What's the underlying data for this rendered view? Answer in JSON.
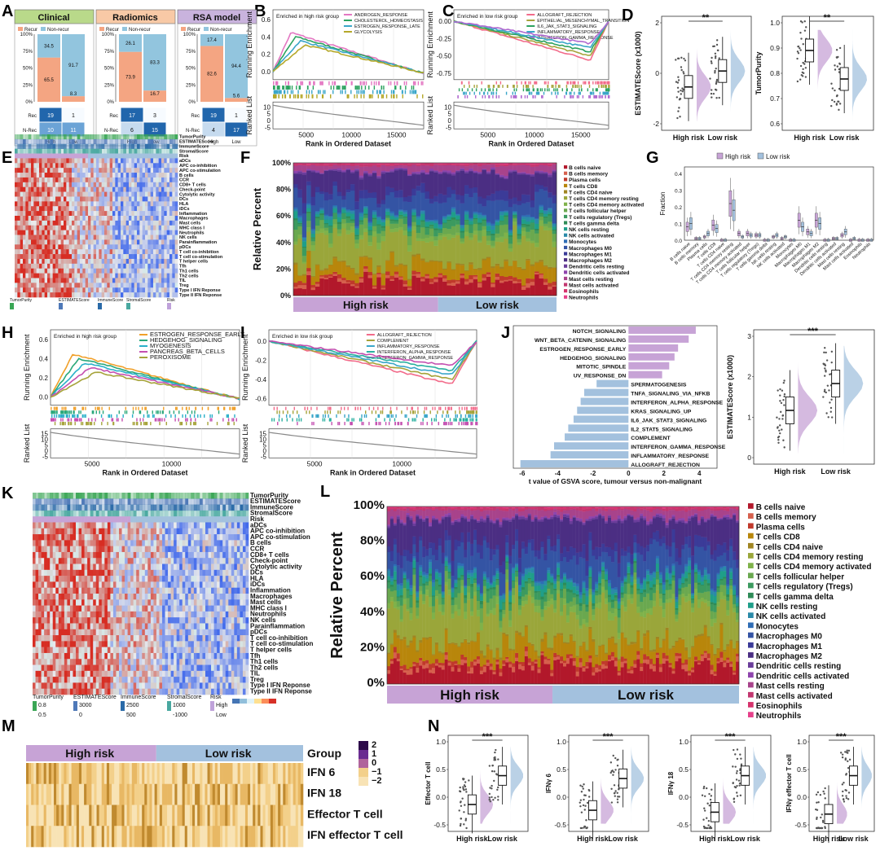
{
  "panel_labels": [
    "A",
    "B",
    "C",
    "D",
    "E",
    "F",
    "G",
    "H",
    "I",
    "J",
    "K",
    "L",
    "M",
    "N"
  ],
  "colors": {
    "recur": "#f4a582",
    "nonrecur": "#92c5de",
    "clinical_head": "#b9d98a",
    "radiomics_head": "#f8c9a6",
    "rsa_head": "#c9b3dd",
    "high": "#c7a3d6",
    "low": "#a3c1de",
    "heat_red": "#d73027",
    "heat_blue": "#4575b4"
  },
  "chart_data": [
    {
      "id": "A",
      "type": "bar",
      "groups": [
        "Clinical",
        "Radiomics",
        "RSA model"
      ],
      "legend": [
        "Recur",
        "Non-recur"
      ],
      "yticks": [
        "0%",
        "25%",
        "50%",
        "75%",
        "100%"
      ],
      "series": [
        {
          "name": "Recur",
          "values": [
            65.5,
            73.9,
            82.6
          ]
        },
        {
          "name": "Non-recur",
          "values": [
            91.7,
            83.3,
            94.4
          ]
        }
      ],
      "bar_labels": [
        {
          "high_recur": "65.5",
          "high_non": "34.5",
          "low_recur": "8.3",
          "low_non": "91.7"
        },
        {
          "high_recur": "73.9",
          "high_non": "26.1",
          "low_recur": "16.7",
          "low_non": "83.3"
        },
        {
          "high_recur": "82.6",
          "high_non": "17.4",
          "low_recur": "5.6",
          "low_non": "94.4"
        }
      ],
      "matrix_rows": [
        "Rec",
        "N-Rec"
      ],
      "matrix_cols": [
        "High",
        "Low"
      ],
      "matrices": [
        [
          [
            "19",
            "1"
          ],
          [
            "10",
            "11"
          ]
        ],
        [
          [
            "17",
            "3"
          ],
          [
            "6",
            "15"
          ]
        ],
        [
          [
            "19",
            "1"
          ],
          [
            "4",
            "17"
          ]
        ]
      ]
    },
    {
      "id": "B",
      "type": "line",
      "title": "Enriched in high risk group",
      "series": [
        {
          "name": "ANDROGEN_RESPONSE"
        },
        {
          "name": "CHOLESTEROL_HOMEOSTASIS"
        },
        {
          "name": "ESTROGEN_RESPONSE_LATE"
        },
        {
          "name": "GLYCOLYSIS"
        }
      ],
      "ylabel": "Running Enrichment",
      "yticks": [
        "0.0",
        "0.2",
        "0.4",
        "0.6"
      ],
      "ylabel2": "Ranked List",
      "yticks2": [
        "10",
        "5",
        "0",
        "-5"
      ],
      "xlabel": "Rank in Ordered Dataset",
      "xticks": [
        "5000",
        "10000",
        "15000"
      ]
    },
    {
      "id": "C",
      "type": "line",
      "title": "Enriched in low risk group",
      "series": [
        {
          "name": "ALLOGRAFT_REJECTION"
        },
        {
          "name": "EPITHELIAL_MESENCHYMAL_TRANSITION"
        },
        {
          "name": "IL6_JAK_STAT3_SIGNALING"
        },
        {
          "name": "INFLAMMATORY_RESPONSE"
        },
        {
          "name": "INTERFERON_GAMMA_RESPONSE"
        }
      ],
      "ylabel": "Running Enrichment",
      "yticks": [
        "0.00",
        "-0.25",
        "-0.50",
        "-0.75"
      ],
      "ylabel2": "Ranked List",
      "yticks2": [
        "10",
        "5",
        "0",
        "-5"
      ],
      "xlabel": "Rank in Ordered Dataset",
      "xticks": [
        "5000",
        "10000",
        "15000"
      ]
    },
    {
      "id": "D",
      "type": "scatter",
      "plots": [
        {
          "ylabel": "ESTIMATEScore (x1000)",
          "yticks": [
            "2",
            "0",
            "-2"
          ],
          "sig": "**",
          "categories": [
            "High risk",
            "Low risk"
          ]
        },
        {
          "ylabel": "TumorPurity",
          "yticks": [
            "1.0",
            "0.9",
            "0.8",
            "0.7",
            "0.6"
          ],
          "sig": "**",
          "categories": [
            "High risk",
            "Low risk"
          ]
        }
      ]
    },
    {
      "id": "E",
      "type": "heatmap",
      "rows": [
        "TumorPurity",
        "ESTIMATEScore",
        "ImmuneScore",
        "StromalScore",
        "Risk",
        "aDCs",
        "APC co-inhibition",
        "APC co-stimulation",
        "B cells",
        "CCR",
        "CD8+ T cells",
        "Check-point",
        "Cytolytic activity",
        "DCs",
        "HLA",
        "iDCs",
        "Inflammation",
        "Macrophages",
        "Mast cells",
        "MHC class I",
        "Neutrophils",
        "NK cells",
        "Parainflammation",
        "pDCs",
        "T cell co-inhibition",
        "T cell co-stimulation",
        "T helper cells",
        "Tfh",
        "Th1 cells",
        "Th2 cells",
        "TIL",
        "Treg",
        "Type I IFN Reponse",
        "Type II IFN Reponse"
      ]
    },
    {
      "id": "F",
      "type": "bar",
      "ylabel": "Relative Percent",
      "yticks": [
        "0%",
        "20%",
        "40%",
        "60%",
        "80%",
        "100%"
      ],
      "groups": [
        "High risk",
        "Low risk"
      ],
      "legend": [
        "B cells naive",
        "B cells memory",
        "Plasma cells",
        "T cells CD8",
        "T cells CD4 naive",
        "T cells CD4 memory resting",
        "T cells CD4 memory activated",
        "T cells follicular helper",
        "T cells regulatory (Tregs)",
        "T cells gamma delta",
        "NK cells resting",
        "NK cells activated",
        "Monocytes",
        "Macrophages M0",
        "Macrophages M1",
        "Macrophages M2",
        "Dendritic cells resting",
        "Dendritic cells activated",
        "Mast cells resting",
        "Mast cells activated",
        "Eosinophils",
        "Neutrophils"
      ]
    },
    {
      "id": "G",
      "type": "scatter",
      "legend": [
        "High risk",
        "Low risk"
      ],
      "ylabel": "Fraction",
      "yticks": [
        "0.0",
        "0.1",
        "0.2",
        "0.3",
        "0.4"
      ],
      "categories": [
        "B cells naive",
        "B cells memory",
        "Plasma cells",
        "T cells CD8",
        "T cells CD4 naive",
        "T cells CD4 memory resting",
        "T cells CD4 memory activated",
        "T cells follicular helper",
        "T cells regulatory (Tregs)",
        "T cells gamma delta",
        "NK cells resting",
        "NK cells activated",
        "Monocytes",
        "Macrophages M0",
        "Macrophages M1",
        "Macrophages M2",
        "Dendritic cells resting",
        "Dendritic cells activated",
        "Mast cells resting",
        "Mast cells activated",
        "Eosinophils",
        "Neutrophils"
      ],
      "high_medians": [
        0.08,
        0.01,
        0.02,
        0.09,
        0.0,
        0.22,
        0.04,
        0.04,
        0.03,
        0.0,
        0.02,
        0.01,
        0.0,
        0.12,
        0.05,
        0.12,
        0.0,
        0.01,
        0.03,
        0.0,
        0.0,
        0.0
      ],
      "low_medians": [
        0.1,
        0.01,
        0.04,
        0.07,
        0.0,
        0.18,
        0.02,
        0.03,
        0.03,
        0.0,
        0.03,
        0.02,
        0.0,
        0.08,
        0.04,
        0.1,
        0.0,
        0.01,
        0.05,
        0.01,
        0.0,
        0.0
      ]
    },
    {
      "id": "H",
      "type": "line",
      "title": "Enriched in high risk group",
      "series": [
        {
          "name": "ESTROGEN_RESPONSE_EARLY"
        },
        {
          "name": "HEDGEHOG_SIGNALING"
        },
        {
          "name": "MYOGENESIS"
        },
        {
          "name": "PANCREAS_BETA_CELLS"
        },
        {
          "name": "PEROXISOME"
        }
      ],
      "ylabel": "Running Enrichment",
      "yticks": [
        "0.0",
        "0.2",
        "0.4",
        "0.6"
      ],
      "ylabel2": "Ranked List",
      "yticks2": [
        "15",
        "10",
        "5",
        "0",
        "-5"
      ],
      "xlabel": "Rank in Ordered Dataset",
      "xticks": [
        "5000",
        "10000"
      ]
    },
    {
      "id": "I",
      "type": "line",
      "title": "Enriched in low risk group",
      "series": [
        {
          "name": "ALLOGRAFT_REJECTION"
        },
        {
          "name": "COMPLEMENT"
        },
        {
          "name": "INFLAMMATORY_RESPONSE"
        },
        {
          "name": "INTERFERON_ALPHA_RESPONSE"
        },
        {
          "name": "INTERFERON_GAMMA_RESPONSE"
        }
      ],
      "ylabel": "Running Enrichment",
      "yticks": [
        "0.0",
        "-0.2",
        "-0.4",
        "-0.6"
      ],
      "ylabel2": "Ranked List",
      "yticks2": [
        "15",
        "10",
        "5",
        "0",
        "-5"
      ],
      "xlabel": "Rank in Ordered Dataset",
      "xticks": [
        "5000",
        "10000"
      ]
    },
    {
      "id": "J",
      "type": "bar",
      "xlabel": "t value of GSVA score, tumour versus non-malignant",
      "xticks": [
        "-6",
        "-4",
        "-2",
        "0",
        "2",
        "4"
      ],
      "categories": [
        "NOTCH_SIGNALING",
        "WNT_BETA_CATENIN_SIGNALING",
        "ESTROGEN_RESPONSE_EARLY",
        "HEDGEHOG_SIGNALING",
        "MITOTIC_SPINDLE",
        "UV_RESPONSE_DN",
        "SPERMATOGENESIS",
        "TNFA_SIGNALING_VIA_NFKB",
        "INTERFERON_ALPHA_RESPONSE",
        "KRAS_SIGNALING_UP",
        "IL6_JAK_STAT3_SIGNALING",
        "IL2_STAT5_SIGNALING",
        "COMPLEMENT",
        "INTERFERON_GAMMA_RESPONSE",
        "INFLAMMATORY_RESPONSE",
        "ALLOGRAFT_REJECTION"
      ],
      "values": [
        3.8,
        3.4,
        2.8,
        2.6,
        2.3,
        1.9,
        -1.8,
        -2.5,
        -2.7,
        -2.9,
        -3.1,
        -3.4,
        -3.6,
        -4.2,
        -4.4,
        -6.1
      ]
    },
    {
      "id": "J2",
      "type": "scatter",
      "ylabel": "ESTIMATEScore (x1000)",
      "yticks": [
        "3",
        "2",
        "1",
        "0"
      ],
      "categories": [
        "High risk",
        "Low risk"
      ],
      "sig": "***"
    },
    {
      "id": "K",
      "type": "heatmap",
      "rows": [
        "TumorPurity",
        "ESTIMATEScore",
        "ImmuneScore",
        "StromalScore",
        "Risk",
        "aDCs",
        "APC co-inhibition",
        "APC co-stimulation",
        "B cells",
        "CCR",
        "CD8+ T cells",
        "Check-point",
        "Cytolytic activity",
        "DCs",
        "HLA",
        "iDCs",
        "Inflammation",
        "Macrophages",
        "Mast cells",
        "MHC class I",
        "Neutrophils",
        "NK cells",
        "Parainflammation",
        "pDCs",
        "T cell co-inhibition",
        "T cell co-stimulation",
        "T helper cells",
        "Tfh",
        "Th1 cells",
        "Th2 cells",
        "TIL",
        "Treg",
        "Type I IFN Reponse",
        "Type II IFN Reponse"
      ],
      "legend_titles": [
        "TumorPurity",
        "ESTIMATEScore",
        "ImmuneScore",
        "StromalScore",
        "Risk"
      ],
      "legend_values": [
        "0.8",
        "0.5",
        "3000",
        "0",
        "2500",
        "500",
        "1000",
        "-1000",
        "High",
        "Low"
      ]
    },
    {
      "id": "L",
      "type": "bar",
      "ylabel": "Relative Percent",
      "yticks": [
        "0%",
        "20%",
        "40%",
        "60%",
        "80%",
        "100%"
      ],
      "groups": [
        "High risk",
        "Low risk"
      ],
      "legend": [
        "B cells naive",
        "B cells memory",
        "Plasma cells",
        "T cells CD8",
        "T cells CD4 naive",
        "T cells CD4 memory resting",
        "T cells CD4 memory activated",
        "T cells follicular helper",
        "T cells regulatory (Tregs)",
        "T cells gamma delta",
        "NK cells resting",
        "NK cells activated",
        "Monocytes",
        "Macrophages M0",
        "Macrophages M1",
        "Macrophages M2",
        "Dendritic cells resting",
        "Dendritic cells activated",
        "Mast cells resting",
        "Mast cells activated",
        "Eosinophils",
        "Neutrophils"
      ]
    },
    {
      "id": "M",
      "type": "heatmap",
      "groups": [
        "High risk",
        "Low risk"
      ],
      "group_label": "Group",
      "rows": [
        "IFN 6",
        "IFN 18",
        "Effector T cell",
        "IFN effector T cell"
      ],
      "scale": [
        "2",
        "1",
        "0",
        "−1",
        "−2"
      ]
    },
    {
      "id": "N",
      "type": "scatter",
      "plots": [
        {
          "ylabel": "Effector T cell",
          "sig": "***"
        },
        {
          "ylabel": "IFNγ 6",
          "sig": "***"
        },
        {
          "ylabel": "IFNγ 18",
          "sig": "***"
        },
        {
          "ylabel": "IFNγ effector T cell",
          "sig": "***"
        }
      ],
      "yticks": [
        "1.0",
        "0.5",
        "0.0",
        "-0.5"
      ],
      "categories": [
        "High risk",
        "Low risk"
      ]
    }
  ]
}
